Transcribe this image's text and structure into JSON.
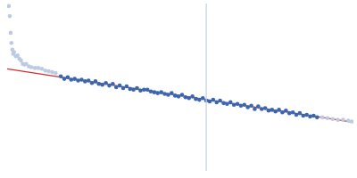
{
  "chart_data": {
    "type": "scatter",
    "xlim": [
      0,
      400
    ],
    "ylim": [
      0,
      200
    ],
    "grid": false,
    "tick_labels": false,
    "series": [
      {
        "type": "line",
        "color": "#c8d2e8",
        "x": [
          230,
          230
        ],
        "values": [
          0,
          200
        ]
      },
      {
        "type": "scatter",
        "color": "#bccbe3",
        "marker": "circle",
        "x": [
          2,
          3,
          4,
          5,
          6,
          7,
          8,
          10,
          12,
          14,
          16,
          18,
          20,
          22,
          25,
          28,
          32,
          36,
          40,
          44,
          48,
          52,
          56,
          364,
          370,
          376,
          382,
          388,
          394,
          398
        ],
        "values": [
          197,
          185,
          165,
          153,
          145,
          140,
          142,
          137,
          138,
          134,
          132,
          128,
          127,
          128,
          125,
          124,
          123,
          123,
          122,
          120,
          119,
          118,
          117,
          64,
          63,
          62,
          61,
          61,
          60,
          59
        ]
      },
      {
        "type": "scatter",
        "color": "#3a66b0",
        "marker": "circle",
        "x": [
          62,
          66,
          70,
          74,
          78,
          82,
          86,
          90,
          94,
          98,
          102,
          106,
          110,
          114,
          118,
          122,
          126,
          130,
          134,
          138,
          142,
          146,
          150,
          154,
          158,
          162,
          166,
          170,
          174,
          178,
          182,
          186,
          190,
          194,
          198,
          202,
          206,
          210,
          214,
          218,
          222,
          226,
          230,
          234,
          238,
          242,
          246,
          250,
          254,
          258,
          262,
          266,
          270,
          274,
          278,
          282,
          286,
          290,
          294,
          298,
          302,
          306,
          310,
          314,
          318,
          322,
          326,
          330,
          334,
          338,
          342,
          346,
          350,
          354,
          358
        ],
        "values": [
          113,
          110,
          112,
          109,
          110,
          108,
          109,
          107,
          108,
          105,
          107,
          104,
          103,
          105,
          102,
          104,
          100,
          102,
          99,
          101,
          98,
          97,
          99,
          96,
          97,
          97,
          95,
          94,
          93,
          94,
          92,
          91,
          93,
          90,
          89,
          91,
          88,
          87,
          89,
          86,
          85,
          87,
          84,
          83,
          85,
          82,
          84,
          81,
          80,
          82,
          79,
          80,
          78,
          79,
          76,
          78,
          74,
          77,
          74,
          75,
          72,
          73,
          71,
          73,
          70,
          72,
          69,
          70,
          67,
          69,
          66,
          67,
          65,
          66,
          64
        ]
      },
      {
        "type": "line",
        "color": "#d42a2a",
        "x": [
          0,
          400
        ],
        "values": [
          122,
          58
        ]
      }
    ]
  }
}
